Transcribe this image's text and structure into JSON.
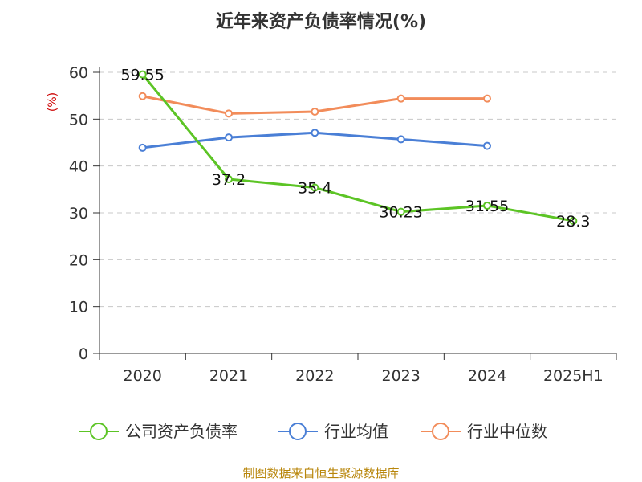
{
  "chart_data": {
    "type": "line",
    "title": "近年来资产负债率情况(%)",
    "ylabel": "(%)",
    "categories": [
      "2020",
      "2021",
      "2022",
      "2023",
      "2024",
      "2025H1"
    ],
    "ylim": [
      0,
      60
    ],
    "yticks": [
      "0",
      "10",
      "20",
      "30",
      "40",
      "50",
      "60"
    ],
    "grid": true,
    "legend_position": "bottom",
    "series": [
      {
        "name": "公司资产负债率",
        "color": "#5cc425",
        "values": [
          59.55,
          37.2,
          35.4,
          30.23,
          31.55,
          28.3
        ],
        "labels": [
          "59.55",
          "37.2",
          "35.4",
          "30.23",
          "31.55",
          "28.3"
        ]
      },
      {
        "name": "行业均值",
        "color": "#4a7fd6",
        "values": [
          43.9,
          46.1,
          47.1,
          45.7,
          44.3,
          null
        ]
      },
      {
        "name": "行业中位数",
        "color": "#f28c5a",
        "values": [
          54.9,
          51.2,
          51.6,
          54.4,
          54.4,
          null
        ]
      }
    ]
  },
  "source": "制图数据来自恒生聚源数据库"
}
